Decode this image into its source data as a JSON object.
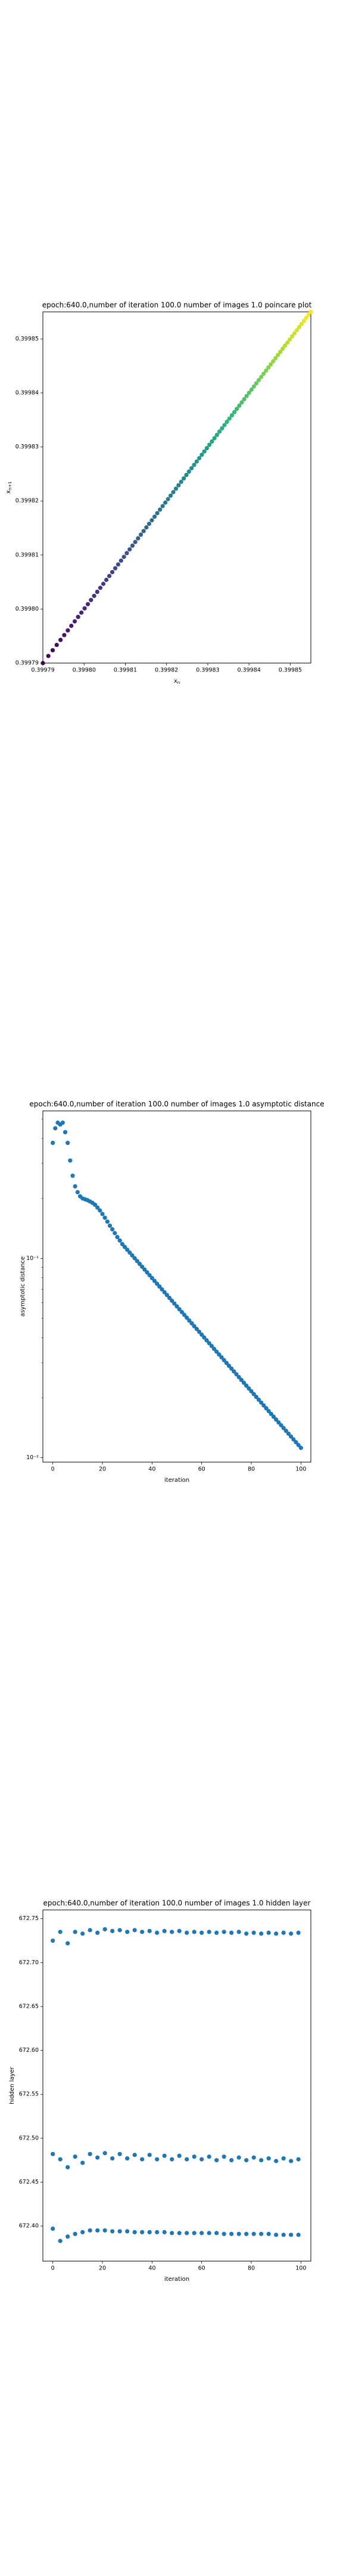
{
  "chart_data": [
    {
      "type": "scatter",
      "title": "epoch:640.0,number of iteration 100.0 number of images 1.0 poincare plot",
      "xlabel": "x",
      "xlabel_sub": "n",
      "ylabel": "x",
      "ylabel_sub": "n+1",
      "xlim": [
        0.39979,
        0.399855
      ],
      "ylim": [
        0.39979,
        0.399855
      ],
      "xticks": [
        0.39979,
        0.3998,
        0.39981,
        0.39982,
        0.39983,
        0.39984,
        0.39985
      ],
      "xtick_labels": [
        "0.39979",
        "0.39980",
        "0.39981",
        "0.39982",
        "0.39983",
        "0.39984",
        "0.39985"
      ],
      "yticks": [
        0.39979,
        0.3998,
        0.39981,
        0.39982,
        0.39983,
        0.39984,
        0.39985
      ],
      "ytick_labels": [
        "0.39979",
        "0.39980",
        "0.39981",
        "0.39982",
        "0.39983",
        "0.39984",
        "0.39985"
      ],
      "grid": false,
      "colormap": "viridis",
      "point_count": 99,
      "x_start": 0.39979,
      "x_end": 0.399855,
      "y_start": 0.39979,
      "y_end": 0.399855
    },
    {
      "type": "scatter",
      "title": "epoch:640.0,number of iteration 100.0  number of images 1.0 asymptotic distance",
      "xlabel": "iteration",
      "ylabel": "asymptotic distance",
      "yscale": "log",
      "xlim": [
        -4,
        104
      ],
      "ylim": [
        0.0095,
        0.55
      ],
      "xticks": [
        0,
        20,
        40,
        60,
        80,
        100
      ],
      "xtick_labels": [
        "0",
        "20",
        "40",
        "60",
        "80",
        "100"
      ],
      "yticks": [
        0.01,
        0.1
      ],
      "ytick_labels": [
        "10⁻²",
        "10⁻¹"
      ],
      "grid": false,
      "color": "#1f77b4",
      "points": [
        [
          0,
          0.38
        ],
        [
          1,
          0.45
        ],
        [
          2,
          0.48
        ],
        [
          3,
          0.47
        ],
        [
          4,
          0.48
        ],
        [
          5,
          0.43
        ],
        [
          6,
          0.38
        ],
        [
          7,
          0.31
        ],
        [
          8,
          0.26
        ],
        [
          9,
          0.23
        ],
        [
          10,
          0.215
        ],
        [
          11,
          0.205
        ],
        [
          12,
          0.2
        ],
        [
          13,
          0.198
        ],
        [
          14,
          0.196
        ],
        [
          15,
          0.193
        ],
        [
          16,
          0.19
        ],
        [
          17,
          0.186
        ],
        [
          18,
          0.18
        ],
        [
          19,
          0.174
        ],
        [
          20,
          0.167
        ],
        [
          21,
          0.16
        ],
        [
          22,
          0.153
        ],
        [
          23,
          0.146
        ],
        [
          24,
          0.14
        ],
        [
          25,
          0.134
        ],
        [
          26,
          0.128
        ],
        [
          27,
          0.123
        ],
        [
          28,
          0.118
        ]
      ],
      "decay_segment": {
        "x_start": 28,
        "x_end": 100,
        "y_start": 0.118,
        "y_end": 0.0112,
        "step": 1
      }
    },
    {
      "type": "scatter",
      "title": "epoch:640.0,number of iteration 100.0  number of images 1.0 hidden layer",
      "xlabel": "iteration",
      "ylabel": "hidden layer",
      "xlim": [
        -4,
        104
      ],
      "ylim": [
        672.36,
        672.76
      ],
      "xticks": [
        0,
        20,
        40,
        60,
        80,
        100
      ],
      "xtick_labels": [
        "0",
        "20",
        "40",
        "60",
        "80",
        "100"
      ],
      "yticks": [
        672.4,
        672.45,
        672.5,
        672.55,
        672.6,
        672.65,
        672.7,
        672.75
      ],
      "ytick_labels": [
        "672.40",
        "672.45",
        "672.50",
        "672.55",
        "672.60",
        "672.65",
        "672.70",
        "672.75"
      ],
      "grid": false,
      "color": "#1f77b4",
      "series": [
        {
          "x": [
            0,
            3,
            6,
            9,
            12,
            15,
            18,
            21,
            24,
            27,
            30,
            33,
            36,
            39,
            42,
            45,
            48,
            51,
            54,
            57,
            60,
            63,
            66,
            69,
            72,
            75,
            78,
            81,
            84,
            87,
            90,
            93,
            96,
            99
          ],
          "y": [
            672.725,
            672.735,
            672.722,
            672.735,
            672.733,
            672.737,
            672.734,
            672.738,
            672.736,
            672.737,
            672.735,
            672.737,
            672.735,
            672.736,
            672.734,
            672.736,
            672.735,
            672.736,
            672.734,
            672.735,
            672.734,
            672.735,
            672.734,
            672.735,
            672.734,
            672.735,
            672.733,
            672.734,
            672.733,
            672.734,
            672.733,
            672.734,
            672.733,
            672.734
          ]
        },
        {
          "x": [
            0,
            3,
            6,
            9,
            12,
            15,
            18,
            21,
            24,
            27,
            30,
            33,
            36,
            39,
            42,
            45,
            48,
            51,
            54,
            57,
            60,
            63,
            66,
            69,
            72,
            75,
            78,
            81,
            84,
            87,
            90,
            93,
            96,
            99
          ],
          "y": [
            672.482,
            672.476,
            672.467,
            672.479,
            672.472,
            672.482,
            672.478,
            672.483,
            672.477,
            672.482,
            672.477,
            672.481,
            672.476,
            672.481,
            672.476,
            672.48,
            672.476,
            672.48,
            672.476,
            672.479,
            672.476,
            672.479,
            672.475,
            672.479,
            672.475,
            672.478,
            672.475,
            672.478,
            672.475,
            672.477,
            672.474,
            672.477,
            672.474,
            672.476
          ]
        },
        {
          "x": [
            0,
            3,
            6,
            9,
            12,
            15,
            18,
            21,
            24,
            27,
            30,
            33,
            36,
            39,
            42,
            45,
            48,
            51,
            54,
            57,
            60,
            63,
            66,
            69,
            72,
            75,
            78,
            81,
            84,
            87,
            90,
            93,
            96,
            99
          ],
          "y": [
            672.397,
            672.383,
            672.388,
            672.391,
            672.393,
            672.395,
            672.395,
            672.395,
            672.394,
            672.394,
            672.394,
            672.393,
            672.393,
            672.393,
            672.393,
            672.393,
            672.392,
            672.392,
            672.392,
            672.392,
            672.392,
            672.392,
            672.392,
            672.391,
            672.391,
            672.391,
            672.391,
            672.391,
            672.391,
            672.391,
            672.39,
            672.39,
            672.39,
            672.39
          ]
        }
      ]
    }
  ]
}
